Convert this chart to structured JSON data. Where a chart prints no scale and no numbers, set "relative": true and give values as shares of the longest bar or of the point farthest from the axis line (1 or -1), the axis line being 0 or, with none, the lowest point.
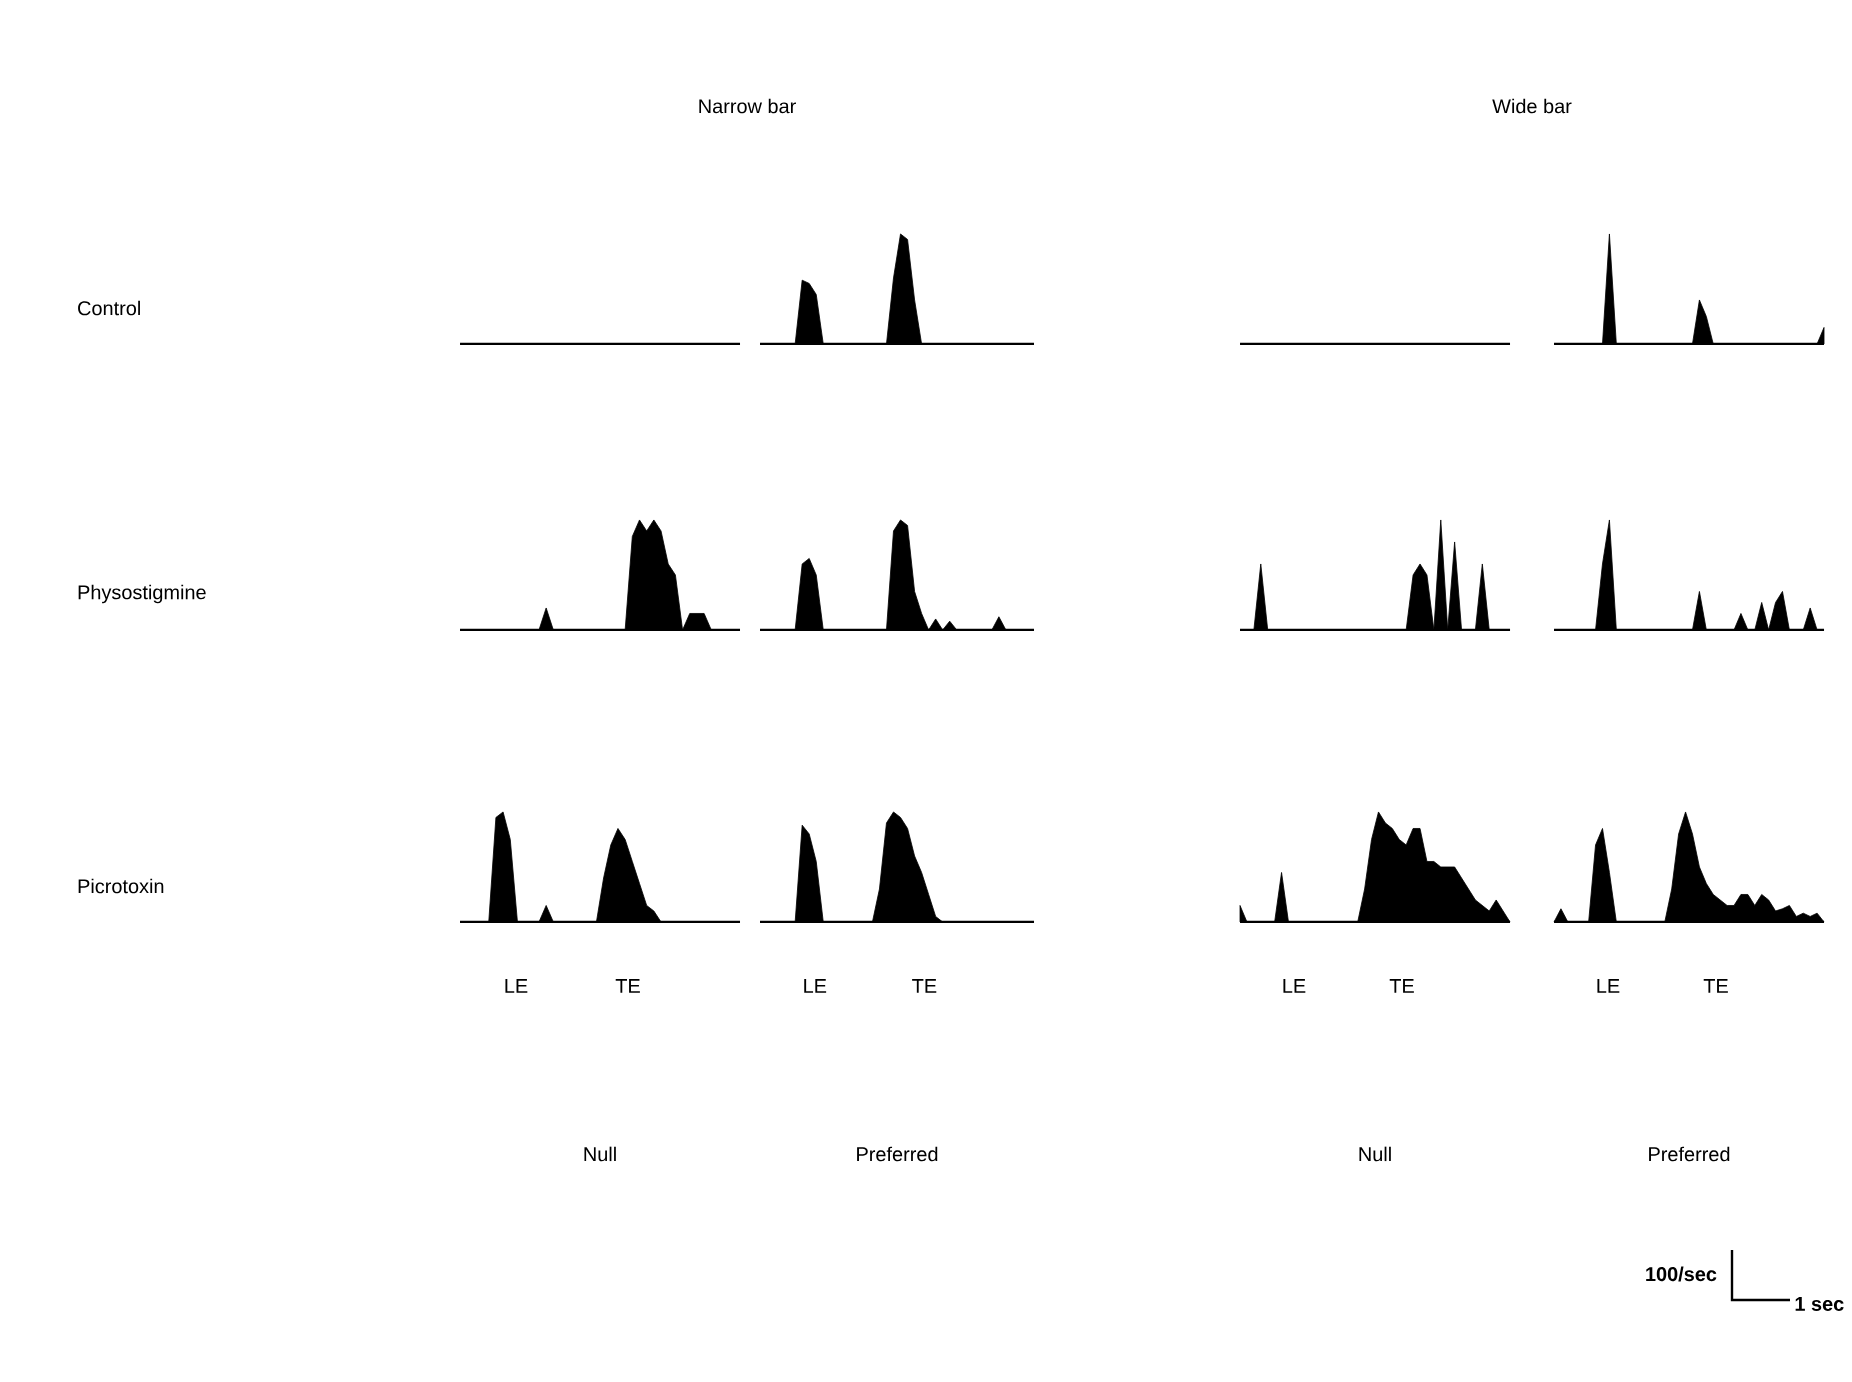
{
  "chart_data": [
    {
      "type": "other",
      "title": "Narrow bar",
      "ylabel": "Control"
    },
    {
      "type": "area",
      "relative": true,
      "color": "#000000",
      "categories": [
        null,
        null,
        null,
        null,
        null,
        null,
        null,
        null,
        null,
        null,
        null,
        null,
        null,
        null,
        null,
        null,
        null,
        null,
        null,
        null,
        null,
        null,
        null,
        null,
        null,
        null,
        null,
        null,
        null,
        null,
        null,
        null,
        null,
        null,
        null,
        null,
        null,
        null,
        null,
        null
      ],
      "values": [
        0,
        0,
        0,
        0,
        0,
        0,
        0.58,
        0.55,
        0.45,
        0,
        0,
        0,
        0,
        0,
        0,
        0,
        0,
        0,
        0,
        0.6,
        1,
        0.95,
        0.4,
        0,
        0,
        0,
        0,
        0,
        0,
        0,
        0,
        0,
        0,
        0,
        0,
        0,
        0,
        0,
        0,
        0
      ]
    },
    {
      "type": "other",
      "title": "Wide bar"
    },
    {
      "type": "area",
      "relative": true,
      "color": "#000000",
      "categories": [
        null,
        null,
        null,
        null,
        null,
        null,
        null,
        null,
        null,
        null,
        null,
        null,
        null,
        null,
        null,
        null,
        null,
        null,
        null,
        null,
        null,
        null,
        null,
        null,
        null,
        null,
        null,
        null,
        null,
        null,
        null,
        null,
        null,
        null,
        null,
        null,
        null,
        null,
        null,
        null
      ],
      "values": [
        0,
        0,
        0,
        0,
        0,
        0,
        0,
        0,
        1,
        0,
        0,
        0,
        0,
        0,
        0,
        0,
        0,
        0,
        0,
        0,
        0,
        0.4,
        0.25,
        0,
        0,
        0,
        0,
        0,
        0,
        0,
        0,
        0,
        0,
        0,
        0,
        0,
        0,
        0,
        0,
        0.15
      ]
    },
    {
      "type": "area",
      "relative": true,
      "color": "#000000",
      "ylabel": "Physostigmine",
      "categories": [
        null,
        null,
        null,
        null,
        null,
        null,
        null,
        null,
        null,
        null,
        null,
        null,
        null,
        null,
        null,
        null,
        null,
        null,
        null,
        null,
        null,
        null,
        null,
        null,
        null,
        null,
        null,
        null,
        null,
        null,
        null,
        null,
        null,
        null,
        null,
        null,
        null,
        null,
        null,
        null
      ],
      "values": [
        0,
        0,
        0,
        0,
        0,
        0,
        0,
        0,
        0,
        0,
        0,
        0,
        0.2,
        0,
        0,
        0,
        0,
        0,
        0,
        0,
        0,
        0,
        0,
        0,
        0.85,
        1,
        0.9,
        1,
        0.9,
        0.6,
        0.5,
        0,
        0.15,
        0.15,
        0.15,
        0,
        0,
        0,
        0,
        0
      ]
    },
    {
      "type": "area",
      "relative": true,
      "color": "#000000",
      "categories": [
        null,
        null,
        null,
        null,
        null,
        null,
        null,
        null,
        null,
        null,
        null,
        null,
        null,
        null,
        null,
        null,
        null,
        null,
        null,
        null,
        null,
        null,
        null,
        null,
        null,
        null,
        null,
        null,
        null,
        null,
        null,
        null,
        null,
        null,
        null,
        null,
        null,
        null,
        null,
        null
      ],
      "values": [
        0,
        0,
        0,
        0,
        0,
        0,
        0.6,
        0.65,
        0.5,
        0,
        0,
        0,
        0,
        0,
        0,
        0,
        0,
        0,
        0,
        0.9,
        1,
        0.95,
        0.35,
        0.15,
        0,
        0.1,
        0,
        0.08,
        0,
        0,
        0,
        0,
        0,
        0,
        0.12,
        0,
        0,
        0,
        0,
        0
      ]
    },
    {
      "type": "area",
      "relative": true,
      "color": "#000000",
      "categories": [
        null,
        null,
        null,
        null,
        null,
        null,
        null,
        null,
        null,
        null,
        null,
        null,
        null,
        null,
        null,
        null,
        null,
        null,
        null,
        null,
        null,
        null,
        null,
        null,
        null,
        null,
        null,
        null,
        null,
        null,
        null,
        null,
        null,
        null,
        null,
        null,
        null,
        null,
        null,
        null
      ],
      "values": [
        0,
        0,
        0,
        0.6,
        0,
        0,
        0,
        0,
        0,
        0,
        0,
        0,
        0,
        0,
        0,
        0,
        0,
        0,
        0,
        0,
        0,
        0,
        0,
        0,
        0,
        0.5,
        0.6,
        0.5,
        0,
        1,
        0,
        0.8,
        0,
        0,
        0,
        0.6,
        0,
        0,
        0,
        0
      ]
    },
    {
      "type": "area",
      "relative": true,
      "color": "#000000",
      "categories": [
        null,
        null,
        null,
        null,
        null,
        null,
        null,
        null,
        null,
        null,
        null,
        null,
        null,
        null,
        null,
        null,
        null,
        null,
        null,
        null,
        null,
        null,
        null,
        null,
        null,
        null,
        null,
        null,
        null,
        null,
        null,
        null,
        null,
        null,
        null,
        null,
        null,
        null,
        null,
        null
      ],
      "values": [
        0,
        0,
        0,
        0,
        0,
        0,
        0,
        0.6,
        1,
        0,
        0,
        0,
        0,
        0,
        0,
        0,
        0,
        0,
        0,
        0,
        0,
        0.35,
        0,
        0,
        0,
        0,
        0,
        0.15,
        0,
        0,
        0.25,
        0,
        0.25,
        0.35,
        0,
        0,
        0,
        0.2,
        0,
        0
      ]
    },
    {
      "type": "area",
      "relative": true,
      "color": "#000000",
      "ylabel": "Picrotoxin",
      "xlabel": "Null",
      "annotations": [
        "LE",
        "TE"
      ],
      "categories": [
        null,
        null,
        null,
        null,
        null,
        null,
        null,
        null,
        null,
        null,
        null,
        null,
        null,
        null,
        null,
        null,
        null,
        null,
        null,
        null,
        null,
        null,
        null,
        null,
        null,
        null,
        null,
        null,
        null,
        null,
        null,
        null,
        null,
        null,
        null,
        null,
        null,
        null,
        null,
        null
      ],
      "values": [
        0,
        0,
        0,
        0,
        0,
        0.95,
        1,
        0.75,
        0,
        0,
        0,
        0,
        0.15,
        0,
        0,
        0,
        0,
        0,
        0,
        0,
        0.4,
        0.7,
        0.85,
        0.75,
        0.55,
        0.35,
        0.15,
        0.1,
        0,
        0,
        0,
        0,
        0,
        0,
        0,
        0,
        0,
        0,
        0,
        0
      ]
    },
    {
      "type": "area",
      "relative": true,
      "color": "#000000",
      "xlabel": "Preferred",
      "annotations": [
        "LE",
        "TE"
      ],
      "categories": [
        null,
        null,
        null,
        null,
        null,
        null,
        null,
        null,
        null,
        null,
        null,
        null,
        null,
        null,
        null,
        null,
        null,
        null,
        null,
        null,
        null,
        null,
        null,
        null,
        null,
        null,
        null,
        null,
        null,
        null,
        null,
        null,
        null,
        null,
        null,
        null,
        null,
        null,
        null,
        null
      ],
      "values": [
        0,
        0,
        0,
        0,
        0,
        0,
        0.88,
        0.8,
        0.55,
        0,
        0,
        0,
        0,
        0,
        0,
        0,
        0,
        0.3,
        0.9,
        1,
        0.95,
        0.85,
        0.6,
        0.45,
        0.25,
        0.05,
        0,
        0,
        0,
        0,
        0,
        0,
        0,
        0,
        0,
        0,
        0,
        0,
        0,
        0
      ]
    },
    {
      "type": "area",
      "relative": true,
      "color": "#000000",
      "xlabel": "Null",
      "annotations": [
        "LE",
        "TE"
      ],
      "categories": [
        null,
        null,
        null,
        null,
        null,
        null,
        null,
        null,
        null,
        null,
        null,
        null,
        null,
        null,
        null,
        null,
        null,
        null,
        null,
        null,
        null,
        null,
        null,
        null,
        null,
        null,
        null,
        null,
        null,
        null,
        null,
        null,
        null,
        null,
        null,
        null,
        null,
        null,
        null,
        null
      ],
      "values": [
        0.15,
        0,
        0,
        0,
        0,
        0,
        0.45,
        0,
        0,
        0,
        0,
        0,
        0,
        0,
        0,
        0,
        0,
        0,
        0.3,
        0.75,
        1,
        0.9,
        0.85,
        0.75,
        0.7,
        0.85,
        0.85,
        0.55,
        0.55,
        0.5,
        0.5,
        0.5,
        0.4,
        0.3,
        0.2,
        0.15,
        0.1,
        0.2,
        0.1,
        0
      ]
    },
    {
      "type": "area",
      "relative": true,
      "color": "#000000",
      "xlabel": "Preferred",
      "annotations": [
        "LE",
        "TE",
        "100/sec",
        "1 sec"
      ],
      "categories": [
        null,
        null,
        null,
        null,
        null,
        null,
        null,
        null,
        null,
        null,
        null,
        null,
        null,
        null,
        null,
        null,
        null,
        null,
        null,
        null,
        null,
        null,
        null,
        null,
        null,
        null,
        null,
        null,
        null,
        null,
        null,
        null,
        null,
        null,
        null,
        null,
        null,
        null,
        null,
        null
      ],
      "values": [
        0,
        0.12,
        0,
        0,
        0,
        0,
        0.7,
        0.85,
        0.45,
        0,
        0,
        0,
        0,
        0,
        0,
        0,
        0,
        0.3,
        0.8,
        1,
        0.8,
        0.5,
        0.35,
        0.25,
        0.2,
        0.15,
        0.15,
        0.25,
        0.25,
        0.15,
        0.25,
        0.2,
        0.1,
        0.12,
        0.15,
        0.05,
        0.08,
        0.05,
        0.08,
        0
      ]
    }
  ]
}
